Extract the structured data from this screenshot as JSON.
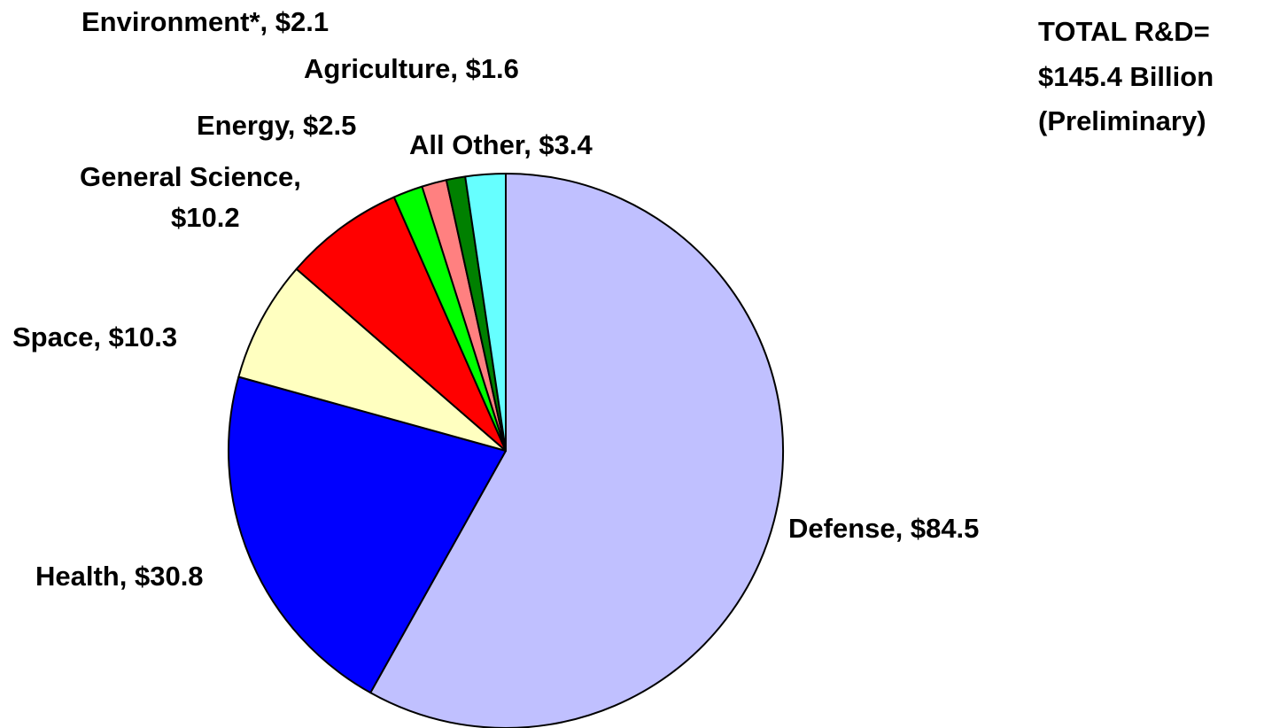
{
  "chart_data": {
    "type": "pie",
    "slices": [
      {
        "label": "Defense, $84.5",
        "value": 84.5,
        "color": "#c0c0ff"
      },
      {
        "label": "Health, $30.8",
        "value": 30.8,
        "color": "#0000ff"
      },
      {
        "label": "Space, $10.3",
        "value": 10.3,
        "color": "#ffffc0"
      },
      {
        "label": "General Science, $10.2",
        "label_lines": [
          "General Science,",
          "$10.2"
        ],
        "value": 10.2,
        "color": "#ff0000"
      },
      {
        "label": "Energy, $2.5",
        "value": 2.5,
        "color": "#00ff00"
      },
      {
        "label": "Environment*, $2.1",
        "value": 2.1,
        "color": "#ff8080"
      },
      {
        "label": "Agriculture, $1.6",
        "value": 1.6,
        "color": "#008000"
      },
      {
        "label": "All Other, $3.4",
        "value": 3.4,
        "color": "#66ffff"
      }
    ],
    "start": "12 o'clock",
    "direction": "clockwise",
    "annotation_lines": [
      "TOTAL R&D=",
      "$145.4 Billion",
      "(Preliminary)"
    ]
  }
}
